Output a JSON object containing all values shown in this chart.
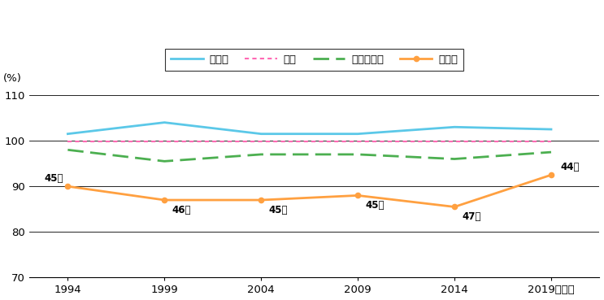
{
  "years": [
    1994,
    1999,
    2004,
    2009,
    2014,
    2019
  ],
  "chiho": [
    101.5,
    104.0,
    101.5,
    101.5,
    103.0,
    102.5
  ],
  "zenkoku": [
    99.8,
    99.8,
    99.8,
    99.8,
    99.8,
    99.8
  ],
  "sandai": [
    98.0,
    95.5,
    97.0,
    97.0,
    96.0,
    97.5
  ],
  "tokyo": [
    90.0,
    87.0,
    87.0,
    88.0,
    85.5,
    92.5
  ],
  "ranks": [
    "45位",
    "46位",
    "45位",
    "45位",
    "47位",
    "44位"
  ],
  "rank_dx": [
    -1.2,
    0.4,
    0.4,
    0.4,
    0.4,
    0.5
  ],
  "rank_dy": [
    1.8,
    -2.2,
    -2.2,
    -2.2,
    -2.2,
    1.8
  ],
  "chiho_color": "#5BC8E8",
  "zenkoku_color": "#FF69B4",
  "sandai_color": "#4CAF50",
  "tokyo_color": "#FFA040",
  "ylim": [
    70,
    112
  ],
  "yticks": [
    70,
    80,
    90,
    100,
    110
  ],
  "legend_labels": [
    "地方圈",
    "全国",
    "三大都市圈",
    "東京都"
  ],
  "bg_color": "#FFFFFF",
  "fig_width": 7.43,
  "fig_height": 3.69
}
